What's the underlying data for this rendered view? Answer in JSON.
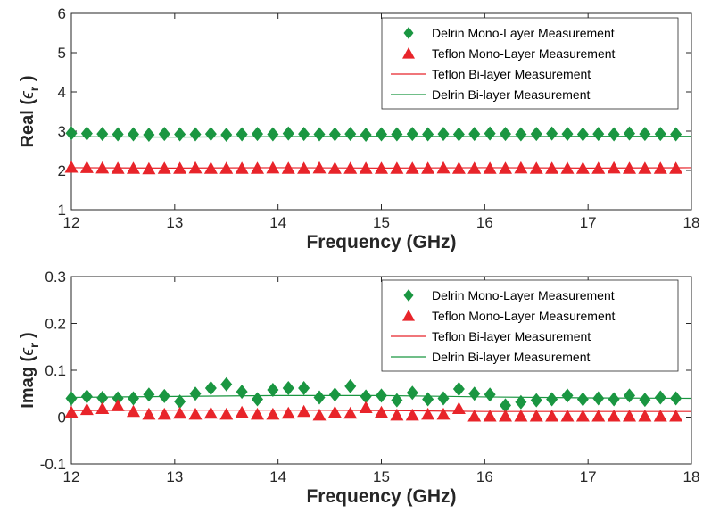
{
  "colors": {
    "delrin": "#1a9641",
    "teflon": "#e8242a",
    "axis": "#262626"
  },
  "chart_data": [
    {
      "type": "scatter",
      "xlabel": "Frequency (GHz)",
      "ylabel": {
        "prefix": "Real (",
        "symbol": "ϵ",
        "sub": "r",
        "suffix": " )"
      },
      "xlim": [
        12,
        18
      ],
      "ylim": [
        1,
        6
      ],
      "xticks": [
        "12",
        "13",
        "14",
        "15",
        "16",
        "17",
        "18"
      ],
      "yticks": [
        "1",
        "2",
        "3",
        "4",
        "5",
        "6"
      ],
      "grid": false,
      "legend_position": "top-right",
      "x": [
        12.0,
        12.15,
        12.3,
        12.45,
        12.6,
        12.75,
        12.9,
        13.05,
        13.2,
        13.35,
        13.5,
        13.65,
        13.8,
        13.95,
        14.1,
        14.25,
        14.4,
        14.55,
        14.7,
        14.85,
        15.0,
        15.15,
        15.3,
        15.45,
        15.6,
        15.75,
        15.9,
        16.05,
        16.2,
        16.35,
        16.5,
        16.65,
        16.8,
        16.95,
        17.1,
        17.25,
        17.4,
        17.55,
        17.7,
        17.85
      ],
      "series": [
        {
          "name": "Delrin Mono-Layer Measurement",
          "kind": "marker",
          "marker": "diamond",
          "color": "#1a9641",
          "values": [
            2.95,
            2.94,
            2.93,
            2.92,
            2.92,
            2.91,
            2.93,
            2.92,
            2.92,
            2.93,
            2.91,
            2.92,
            2.93,
            2.92,
            2.94,
            2.93,
            2.92,
            2.92,
            2.93,
            2.91,
            2.92,
            2.92,
            2.93,
            2.92,
            2.93,
            2.92,
            2.93,
            2.94,
            2.93,
            2.92,
            2.93,
            2.94,
            2.93,
            2.92,
            2.93,
            2.92,
            2.94,
            2.93,
            2.93,
            2.92
          ]
        },
        {
          "name": "Teflon Mono-Layer Measurement",
          "kind": "marker",
          "marker": "triangle",
          "color": "#e8242a",
          "values": [
            2.08,
            2.07,
            2.06,
            2.05,
            2.05,
            2.04,
            2.05,
            2.05,
            2.06,
            2.05,
            2.05,
            2.05,
            2.05,
            2.06,
            2.05,
            2.05,
            2.06,
            2.05,
            2.05,
            2.05,
            2.05,
            2.05,
            2.05,
            2.05,
            2.06,
            2.05,
            2.05,
            2.05,
            2.05,
            2.06,
            2.05,
            2.05,
            2.05,
            2.05,
            2.05,
            2.06,
            2.05,
            2.05,
            2.05,
            2.05
          ]
        },
        {
          "name": "Teflon Bi-layer Measurement",
          "kind": "line",
          "color": "#e8242a",
          "x": [
            12,
            13,
            14,
            15,
            16,
            17,
            18
          ],
          "values": [
            2.07,
            2.06,
            2.07,
            2.06,
            2.07,
            2.06,
            2.07
          ]
        },
        {
          "name": "Delrin Bi-layer Measurement",
          "kind": "line",
          "color": "#1a9641",
          "x": [
            12,
            13,
            14,
            15,
            16,
            17,
            18
          ],
          "values": [
            2.86,
            2.85,
            2.86,
            2.87,
            2.86,
            2.87,
            2.87
          ]
        }
      ]
    },
    {
      "type": "scatter",
      "xlabel": "Frequency (GHz)",
      "ylabel": {
        "prefix": "Imag (",
        "symbol": "ϵ",
        "sub": "r",
        "suffix": " )"
      },
      "xlim": [
        12,
        18
      ],
      "ylim": [
        -0.1,
        0.3
      ],
      "xticks": [
        "12",
        "13",
        "14",
        "15",
        "16",
        "17",
        "18"
      ],
      "yticks": [
        "-0.1",
        "0",
        "0.1",
        "0.2",
        "0.3"
      ],
      "grid": false,
      "legend_position": "top-right",
      "x": [
        12.0,
        12.15,
        12.3,
        12.45,
        12.6,
        12.75,
        12.9,
        13.05,
        13.2,
        13.35,
        13.5,
        13.65,
        13.8,
        13.95,
        14.1,
        14.25,
        14.4,
        14.55,
        14.7,
        14.85,
        15.0,
        15.15,
        15.3,
        15.45,
        15.6,
        15.75,
        15.9,
        16.05,
        16.2,
        16.35,
        16.5,
        16.65,
        16.8,
        16.95,
        17.1,
        17.25,
        17.4,
        17.55,
        17.7,
        17.85
      ],
      "series": [
        {
          "name": "Delrin Mono-Layer Measurement",
          "kind": "marker",
          "marker": "diamond",
          "color": "#1a9641",
          "values": [
            0.04,
            0.044,
            0.041,
            0.04,
            0.04,
            0.048,
            0.045,
            0.033,
            0.05,
            0.062,
            0.07,
            0.054,
            0.038,
            0.058,
            0.062,
            0.062,
            0.042,
            0.048,
            0.066,
            0.044,
            0.046,
            0.036,
            0.052,
            0.038,
            0.04,
            0.06,
            0.05,
            0.048,
            0.025,
            0.032,
            0.036,
            0.038,
            0.046,
            0.038,
            0.04,
            0.038,
            0.046,
            0.037,
            0.042,
            0.04
          ]
        },
        {
          "name": "Teflon Mono-Layer Measurement",
          "kind": "marker",
          "marker": "triangle",
          "color": "#e8242a",
          "values": [
            0.01,
            0.016,
            0.018,
            0.024,
            0.012,
            0.006,
            0.006,
            0.008,
            0.006,
            0.008,
            0.006,
            0.01,
            0.006,
            0.006,
            0.008,
            0.012,
            0.004,
            0.01,
            0.008,
            0.02,
            0.01,
            0.004,
            0.004,
            0.006,
            0.006,
            0.018,
            0.002,
            0.002,
            0.002,
            0.002,
            0.002,
            0.002,
            0.002,
            0.002,
            0.002,
            0.002,
            0.002,
            0.002,
            0.002,
            0.002
          ]
        },
        {
          "name": "Teflon Bi-layer Measurement",
          "kind": "line",
          "color": "#e8242a",
          "x": [
            12,
            13,
            14,
            15,
            16,
            17,
            18
          ],
          "values": [
            0.014,
            0.015,
            0.015,
            0.014,
            0.012,
            0.012,
            0.012
          ]
        },
        {
          "name": "Delrin Bi-layer Measurement",
          "kind": "line",
          "color": "#1a9641",
          "x": [
            12,
            13,
            14,
            15,
            16,
            17,
            18
          ],
          "values": [
            0.042,
            0.044,
            0.046,
            0.046,
            0.043,
            0.041,
            0.04
          ]
        }
      ]
    }
  ]
}
